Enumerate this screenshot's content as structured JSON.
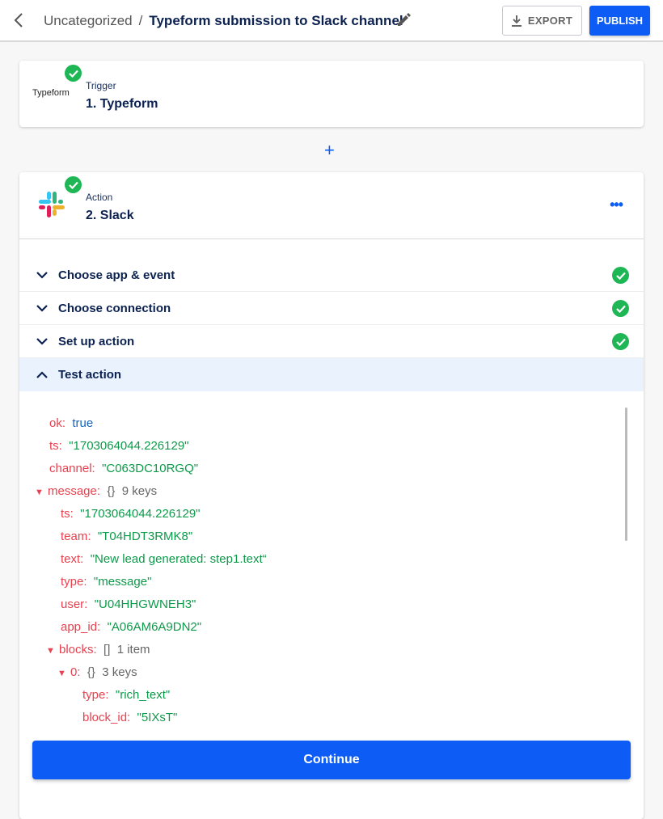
{
  "header": {
    "breadcrumb_parent": "Uncategorized",
    "separator": "/",
    "title": "Typeform submission to Slack channel",
    "export_label": "EXPORT",
    "publish_label": "PUBLISH"
  },
  "steps": [
    {
      "logo_text": "Typeform",
      "kind": "Trigger",
      "name": "1. Typeform",
      "status": "complete"
    },
    {
      "kind": "Action",
      "name": "2. Slack",
      "status": "complete"
    }
  ],
  "add_step": "+",
  "more": "•••",
  "sections": [
    {
      "label": "Choose app & event",
      "complete": true,
      "expanded": false
    },
    {
      "label": "Choose connection",
      "complete": true,
      "expanded": false
    },
    {
      "label": "Set up action",
      "complete": true,
      "expanded": false
    },
    {
      "label": "Test action",
      "complete": false,
      "expanded": true
    }
  ],
  "result": [
    {
      "depth": 0,
      "key": "ok:",
      "value": "true",
      "type": "bool"
    },
    {
      "depth": 0,
      "key": "ts:",
      "value": "\"1703064044.226129\"",
      "type": "str"
    },
    {
      "depth": 0,
      "key": "channel:",
      "value": "\"C063DC10RGQ\"",
      "type": "str"
    },
    {
      "depth": 0,
      "key": "message:",
      "value": "{}  9 keys",
      "type": "meta",
      "expanded": true
    },
    {
      "depth": 1,
      "key": "ts:",
      "value": "\"1703064044.226129\"",
      "type": "str"
    },
    {
      "depth": 1,
      "key": "team:",
      "value": "\"T04HDT3RMK8\"",
      "type": "str"
    },
    {
      "depth": 1,
      "key": "text:",
      "value": "\"New lead generated: step1.text“",
      "type": "str"
    },
    {
      "depth": 1,
      "key": "type:",
      "value": "\"message\"",
      "type": "str"
    },
    {
      "depth": 1,
      "key": "user:",
      "value": "\"U04HHGWNEH3\"",
      "type": "str"
    },
    {
      "depth": 1,
      "key": "app_id:",
      "value": "\"A06AM6A9DN2\"",
      "type": "str"
    },
    {
      "depth": 1,
      "key": "blocks:",
      "value": "[]  1 item",
      "type": "meta",
      "expanded": true
    },
    {
      "depth": 2,
      "key": "0:",
      "value": "{}  3 keys",
      "type": "meta",
      "expanded": true
    },
    {
      "depth": 3,
      "key": "type:",
      "value": "\"rich_text\"",
      "type": "str"
    },
    {
      "depth": 3,
      "key": "block_id:",
      "value": "\"5IXsT\"",
      "type": "str"
    }
  ],
  "continue_label": "Continue",
  "colors": {
    "accent": "#0d5cf5",
    "success": "#1fb655",
    "key": "#e8414f",
    "string": "#0d9a4a",
    "bool": "#1565c0"
  }
}
